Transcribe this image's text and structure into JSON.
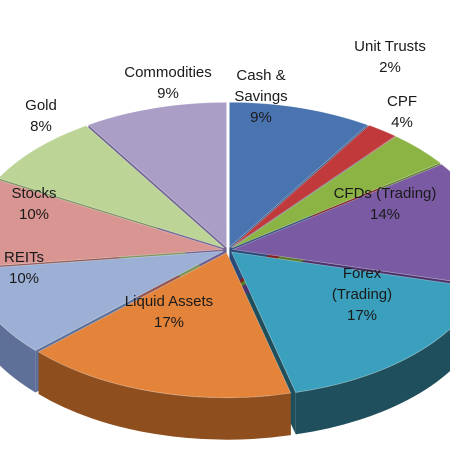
{
  "chart_data": {
    "type": "pie",
    "style": "3d-exploded-tilted",
    "title": "",
    "slices": [
      {
        "label": "Cash & Savings",
        "label_lines": [
          "Cash &",
          "Savings"
        ],
        "value": 9,
        "display": "9%",
        "color": "#4a74b0",
        "side_color": "#2c4a78"
      },
      {
        "label": "Unit Trusts",
        "label_lines": [
          "Unit Trusts"
        ],
        "value": 2,
        "display": "2%",
        "color": "#c0393b",
        "side_color": "#7d2224"
      },
      {
        "label": "CPF",
        "label_lines": [
          "CPF"
        ],
        "value": 4,
        "display": "4%",
        "color": "#8cb445",
        "side_color": "#5a7a28"
      },
      {
        "label": "CFDs (Trading)",
        "label_lines": [
          "CFDs (Trading)"
        ],
        "value": 14,
        "display": "14%",
        "color": "#7a5aa3",
        "side_color": "#4b346c"
      },
      {
        "label": "Forex (Trading)",
        "label_lines": [
          "Forex",
          "(Trading)"
        ],
        "value": 17,
        "display": "17%",
        "color": "#3aa0bd",
        "side_color": "#1f4f5c"
      },
      {
        "label": "Liquid Assets",
        "label_lines": [
          "Liquid Assets"
        ],
        "value": 17,
        "display": "17%",
        "color": "#e4833a",
        "side_color": "#8f4e1e"
      },
      {
        "label": "REITs",
        "label_lines": [
          "REITs"
        ],
        "value": 10,
        "display": "10%",
        "color": "#9cb0d6",
        "side_color": "#5f7098"
      },
      {
        "label": "Stocks",
        "label_lines": [
          "Stocks"
        ],
        "value": 10,
        "display": "10%",
        "color": "#d89592",
        "side_color": "#8f5653"
      },
      {
        "label": "Gold",
        "label_lines": [
          "Gold"
        ],
        "value": 8,
        "display": "8%",
        "color": "#bcd596",
        "side_color": "#7a915a"
      },
      {
        "label": "Commodities",
        "label_lines": [
          "Commodities"
        ],
        "value": 9,
        "display": "9%",
        "color": "#aa9dc6",
        "side_color": "#6d6090"
      }
    ],
    "legend": "none"
  }
}
